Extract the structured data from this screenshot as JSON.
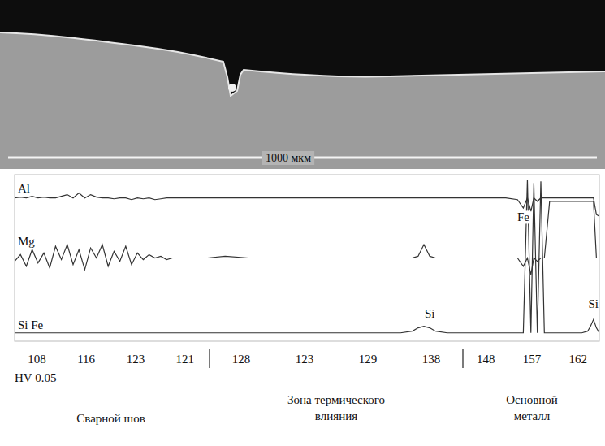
{
  "chart_data": {
    "type": "line",
    "scale_bar_label": "1000 мкм",
    "x": [
      0,
      1,
      2,
      3,
      4,
      5,
      6,
      7,
      8,
      9,
      10,
      11,
      12,
      13,
      14,
      15,
      16,
      17,
      18,
      19,
      20,
      21,
      22,
      23,
      24,
      25,
      26,
      27,
      28,
      30,
      33,
      36,
      40,
      44,
      48,
      52,
      56,
      60,
      64,
      66,
      68,
      69,
      70,
      71,
      72,
      74,
      78,
      80,
      82,
      84,
      86,
      87,
      87.7,
      88.3,
      88.8,
      89.4,
      90,
      90.6,
      91.5,
      93,
      95,
      97,
      98,
      98.5,
      99,
      99.5,
      100
    ],
    "xlim": [
      0,
      100
    ],
    "ylim": [
      0,
      100
    ],
    "tick_labels": false,
    "grid": false,
    "series": [
      {
        "name": "Al",
        "color": "#333333",
        "values": [
          86,
          86.5,
          86,
          87,
          86,
          86.5,
          86,
          86,
          87,
          88,
          86,
          89,
          86,
          88,
          86.5,
          86,
          86,
          85.5,
          86,
          86,
          85,
          86,
          85.5,
          86,
          85,
          85.5,
          86,
          86,
          86,
          86,
          86,
          86,
          86,
          86,
          86,
          86,
          86,
          86,
          86,
          86,
          86,
          86,
          86,
          86,
          86,
          86,
          86,
          86,
          86,
          86,
          85,
          80,
          86,
          78,
          86,
          84,
          86,
          86,
          86,
          86,
          86,
          86,
          86,
          86,
          86,
          76,
          75
        ]
      },
      {
        "name": "Mg",
        "color": "#333333",
        "values": [
          48,
          52,
          45,
          55,
          47,
          53,
          44,
          57,
          49,
          58,
          46,
          55,
          43,
          56,
          50,
          58,
          45,
          54,
          48,
          57,
          46,
          53,
          49,
          52,
          50,
          51,
          49,
          50,
          50,
          50,
          50,
          51,
          50,
          50,
          50,
          50,
          50,
          50,
          50,
          50,
          50,
          51,
          58,
          51,
          50,
          50,
          50,
          50,
          50,
          50,
          50,
          45,
          50,
          40,
          50,
          48,
          50,
          50,
          84,
          84,
          84,
          84,
          84,
          84,
          84,
          50,
          50
        ]
      },
      {
        "name": "Si Fe",
        "color": "#333333",
        "values": [
          5,
          5,
          5,
          5,
          5,
          5,
          5,
          5,
          5,
          5,
          5,
          5,
          5,
          5,
          5,
          5,
          5,
          5,
          5,
          5,
          5,
          5,
          5,
          5,
          5,
          5,
          5,
          5,
          5,
          5,
          5,
          5,
          5,
          5,
          5,
          5,
          5,
          5,
          5,
          5,
          6,
          8,
          9,
          8,
          6,
          5,
          5,
          5,
          5,
          5,
          5,
          5,
          97,
          5,
          95,
          5,
          96,
          5,
          5,
          5,
          5,
          5,
          6,
          9,
          13,
          8,
          5
        ]
      }
    ],
    "annotations": [
      {
        "text": "Fe",
        "x": 87,
        "y": 72
      },
      {
        "text": "Si",
        "x": 71,
        "y": 14
      },
      {
        "text": "Si",
        "x": 99,
        "y": 20
      }
    ],
    "hardness_label": "HV 0.05",
    "hardness": [
      {
        "zone": "Сварной шов",
        "values": [
          108,
          116,
          123,
          121
        ]
      },
      {
        "zone": "Зона термического влияния",
        "values": [
          128,
          123,
          129,
          138
        ]
      },
      {
        "zone": "Основной металл",
        "values": [
          148,
          157,
          162
        ]
      }
    ]
  }
}
